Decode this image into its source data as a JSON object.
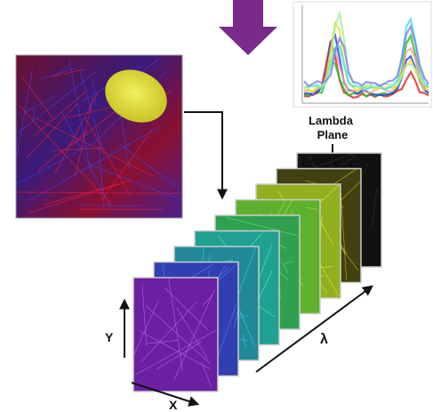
{
  "lambda_plane_label": {
    "line1": "Lambda",
    "line2": "Plane"
  },
  "axes": {
    "y": "Y",
    "x": "X",
    "lambda": "λ"
  }
}
